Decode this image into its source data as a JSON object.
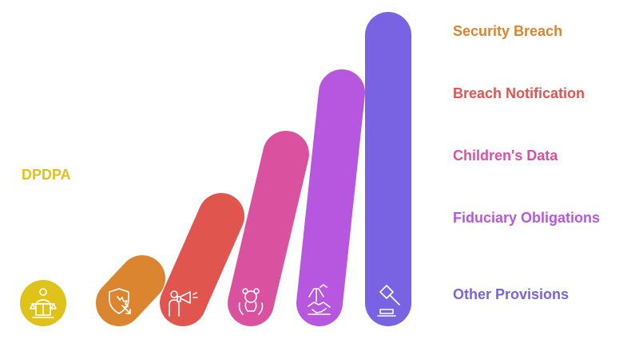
{
  "hub": {
    "title": "DPDPA",
    "description": "",
    "color": "#e0c31a",
    "icon": "scales-justice-icon"
  },
  "items": [
    {
      "label": "Security Breach",
      "description": "",
      "color": "#dc8530",
      "icon": "shield-cursor-icon"
    },
    {
      "label": "Breach Notification",
      "description": "",
      "color": "#e1554f",
      "icon": "megaphone-person-icon"
    },
    {
      "label": "Children's Data",
      "description": "",
      "color": "#d9519f",
      "icon": "teddy-bear-hands-icon"
    },
    {
      "label": "Fiduciary Obligations",
      "description": "",
      "color": "#b757e0",
      "icon": "handshake-icon"
    },
    {
      "label": "Other Provisions",
      "description": "",
      "color": "#7a63e3",
      "icon": "gavel-icon"
    }
  ]
}
